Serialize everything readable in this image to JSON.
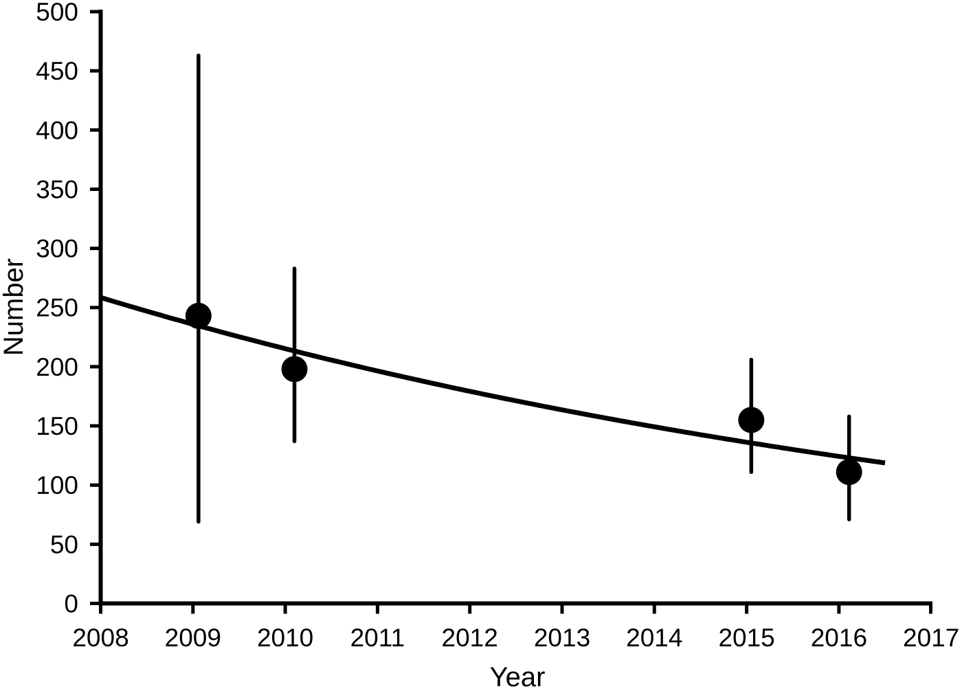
{
  "chart_data": {
    "type": "scatter",
    "title": "",
    "xlabel": "Year",
    "ylabel": "Number",
    "xlim": [
      2008,
      2017
    ],
    "ylim": [
      0,
      500
    ],
    "x_ticks": [
      2008,
      2009,
      2010,
      2011,
      2012,
      2013,
      2014,
      2015,
      2016,
      2017
    ],
    "y_ticks": [
      0,
      50,
      100,
      150,
      200,
      250,
      300,
      350,
      400,
      450,
      500
    ],
    "grid": false,
    "legend": false,
    "series": [
      {
        "name": "point-estimates-with-error-bars",
        "type": "scatter",
        "marker": "filled-circle",
        "points": [
          {
            "year": 2009,
            "x_plot": 2009.06,
            "value": 243,
            "ci_low": 69,
            "ci_high": 463
          },
          {
            "year": 2010,
            "x_plot": 2010.1,
            "value": 198,
            "ci_low": 137,
            "ci_high": 283
          },
          {
            "year": 2015,
            "x_plot": 2015.05,
            "value": 155,
            "ci_low": 111,
            "ci_high": 206
          },
          {
            "year": 2016,
            "x_plot": 2016.11,
            "value": 111,
            "ci_low": 71,
            "ci_high": 158
          }
        ]
      },
      {
        "name": "fitted-trend-line",
        "type": "line",
        "shape": "exponential-decay",
        "x_start": 2008.0,
        "y_start": 258.5,
        "x_end": 2016.52,
        "y_end": 118.5
      }
    ],
    "colors": {
      "foreground": "#000000",
      "background": "#ffffff"
    }
  }
}
